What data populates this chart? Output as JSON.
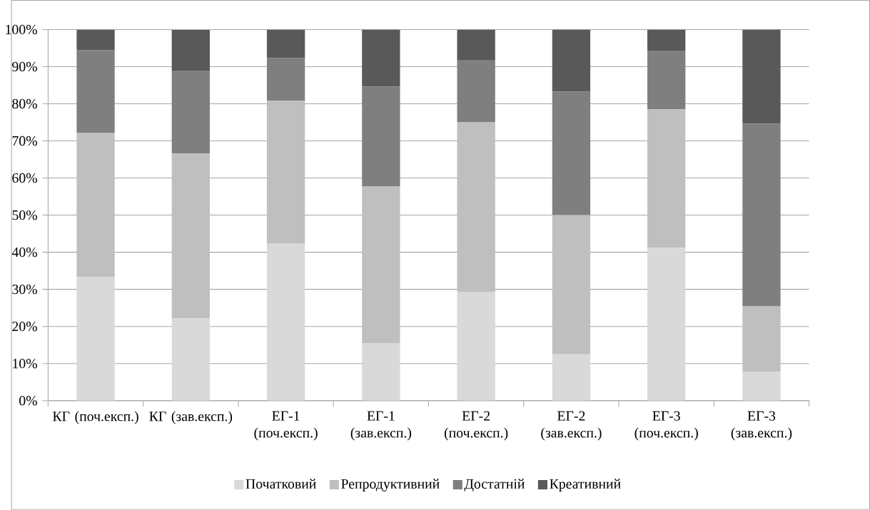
{
  "chart_data": {
    "type": "bar",
    "stacked": true,
    "categories": [
      "КГ (поч.експ.)",
      "КГ (зав.експ.)",
      "ЕГ-1 (поч.експ.)",
      "ЕГ-1 (зав.експ.)",
      "ЕГ-2 (поч.експ.)",
      "ЕГ-2 (зав.експ.)",
      "ЕГ-3 (поч.експ.)",
      "ЕГ-3 (зав.експ.)"
    ],
    "series": [
      {
        "name": "Початковий",
        "color": "#d9d9d9",
        "values": [
          33.3,
          22.2,
          42.3,
          15.4,
          29.2,
          12.5,
          41.2,
          7.8
        ]
      },
      {
        "name": "Репродуктивний",
        "color": "#bfbfbf",
        "values": [
          38.9,
          44.4,
          38.5,
          42.3,
          45.8,
          37.5,
          37.3,
          17.6
        ]
      },
      {
        "name": "Достатній",
        "color": "#7f7f7f",
        "values": [
          22.2,
          22.2,
          11.5,
          26.9,
          16.7,
          33.3,
          15.7,
          49.2
        ]
      },
      {
        "name": "Креативний",
        "color": "#595959",
        "values": [
          5.6,
          11.1,
          7.7,
          15.4,
          8.3,
          16.7,
          5.8,
          25.4
        ]
      }
    ],
    "ylim": [
      0,
      100
    ],
    "yticks": [
      {
        "value": 0,
        "label": "0%"
      },
      {
        "value": 10,
        "label": "10%"
      },
      {
        "value": 20,
        "label": "20%"
      },
      {
        "value": 30,
        "label": "30%"
      },
      {
        "value": 40,
        "label": "40%"
      },
      {
        "value": 50,
        "label": "50%"
      },
      {
        "value": 60,
        "label": "60%"
      },
      {
        "value": 70,
        "label": "70%"
      },
      {
        "value": 80,
        "label": "80%"
      },
      {
        "value": 90,
        "label": "90%"
      },
      {
        "value": 100,
        "label": "100%"
      }
    ],
    "grid": "y",
    "legend": "bottom"
  }
}
